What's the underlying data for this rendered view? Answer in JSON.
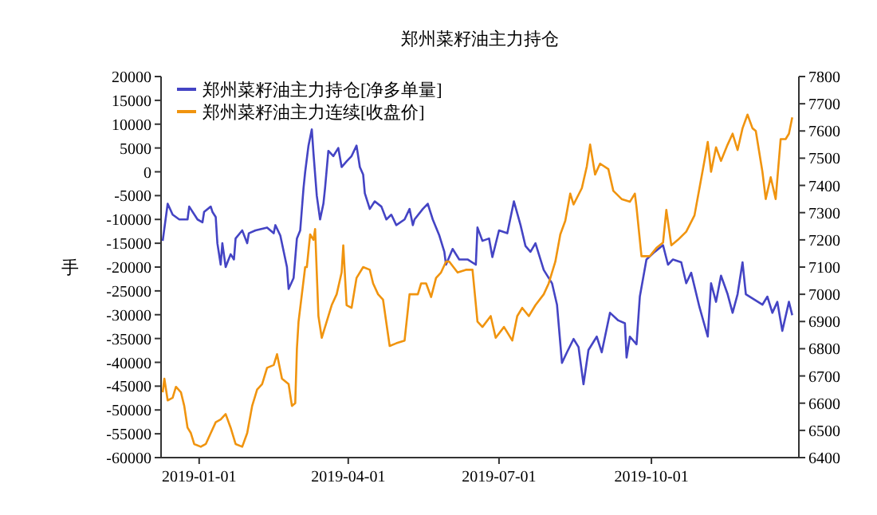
{
  "chart_data": {
    "type": "line",
    "title": "郑州菜籽油主力持仓",
    "ylabel": "手",
    "xlim": [
      "2018-12-09",
      "2019-12-29"
    ],
    "xticks": [
      "2019-01-01",
      "2019-04-01",
      "2019-07-01",
      "2019-10-01"
    ],
    "ylim": [
      -60000,
      20000
    ],
    "yticks": [
      -60000,
      -55000,
      -50000,
      -45000,
      -40000,
      -35000,
      -30000,
      -25000,
      -20000,
      -15000,
      -10000,
      -5000,
      0,
      5000,
      10000,
      15000,
      20000
    ],
    "y2lim": [
      6400,
      7800
    ],
    "y2ticks": [
      6400,
      6500,
      6600,
      6700,
      6800,
      6900,
      7000,
      7100,
      7200,
      7300,
      7400,
      7500,
      7600,
      7700,
      7800
    ],
    "legend": "top left",
    "grid": false,
    "series": [
      {
        "name": "郑州菜籽油主力持仓[净多单量]",
        "color": "#4444c4",
        "x": [
          "2018-12-10",
          "2018-12-13",
          "2018-12-16",
          "2018-12-20",
          "2018-12-25",
          "2018-12-26",
          "2018-12-31",
          "2019-01-03",
          "2019-01-04",
          "2019-01-08",
          "2019-01-09",
          "2019-01-11",
          "2019-01-12",
          "2019-01-14",
          "2019-01-15",
          "2019-01-17",
          "2019-01-20",
          "2019-01-22",
          "2019-01-23",
          "2019-01-27",
          "2019-01-30",
          "2019-01-31",
          "2019-02-04",
          "2019-02-11",
          "2019-02-15",
          "2019-02-16",
          "2019-02-19",
          "2019-02-23",
          "2019-02-24",
          "2019-02-27",
          "2019-03-01",
          "2019-03-03",
          "2019-03-05",
          "2019-03-06",
          "2019-03-08",
          "2019-03-10",
          "2019-03-11",
          "2019-03-13",
          "2019-03-15",
          "2019-03-17",
          "2019-03-18",
          "2019-03-20",
          "2019-03-23",
          "2019-03-26",
          "2019-03-28",
          "2019-03-31",
          "2019-04-03",
          "2019-04-06",
          "2019-04-08",
          "2019-04-10",
          "2019-04-11",
          "2019-04-14",
          "2019-04-17",
          "2019-04-21",
          "2019-04-24",
          "2019-04-27",
          "2019-04-30",
          "2019-05-05",
          "2019-05-08",
          "2019-05-10",
          "2019-05-11",
          "2019-05-16",
          "2019-05-19",
          "2019-05-22",
          "2019-05-26",
          "2019-05-29",
          "2019-05-30",
          "2019-06-03",
          "2019-06-07",
          "2019-06-12",
          "2019-06-17",
          "2019-06-18",
          "2019-06-21",
          "2019-06-25",
          "2019-06-27",
          "2019-07-01",
          "2019-07-06",
          "2019-07-10",
          "2019-07-14",
          "2019-07-17",
          "2019-07-20",
          "2019-07-23",
          "2019-07-28",
          "2019-08-02",
          "2019-08-05",
          "2019-08-08",
          "2019-08-11",
          "2019-08-15",
          "2019-08-18",
          "2019-08-21",
          "2019-08-24",
          "2019-08-29",
          "2019-09-01",
          "2019-09-06",
          "2019-09-11",
          "2019-09-15",
          "2019-09-16",
          "2019-09-18",
          "2019-09-22",
          "2019-09-24",
          "2019-09-28",
          "2019-10-03",
          "2019-10-08",
          "2019-10-11",
          "2019-10-14",
          "2019-10-19",
          "2019-10-22",
          "2019-10-25",
          "2019-10-30",
          "2019-11-04",
          "2019-11-06",
          "2019-11-09",
          "2019-11-12",
          "2019-11-16",
          "2019-11-19",
          "2019-11-22",
          "2019-11-25",
          "2019-11-27",
          "2019-12-02",
          "2019-12-07",
          "2019-12-10",
          "2019-12-13",
          "2019-12-16",
          "2019-12-19",
          "2019-12-23",
          "2019-12-25"
        ],
        "values": [
          -14500,
          -6700,
          -9000,
          -10000,
          -10000,
          -7300,
          -10000,
          -10600,
          -8400,
          -7300,
          -8400,
          -9500,
          -15000,
          -19500,
          -15000,
          -20000,
          -17300,
          -18400,
          -14000,
          -12300,
          -15000,
          -12900,
          -12300,
          -11700,
          -12900,
          -11200,
          -13400,
          -20000,
          -24600,
          -22300,
          -14000,
          -12300,
          -3400,
          0,
          5500,
          8900,
          3900,
          -5000,
          -10000,
          -6700,
          -3400,
          4400,
          3300,
          5000,
          1000,
          2200,
          3300,
          5500,
          1000,
          -600,
          -4500,
          -7800,
          -6200,
          -7300,
          -10000,
          -9000,
          -11200,
          -10000,
          -7800,
          -11200,
          -10000,
          -7800,
          -6700,
          -10000,
          -13400,
          -16800,
          -19500,
          -16200,
          -18400,
          -18400,
          -19500,
          -11700,
          -14500,
          -14000,
          -17900,
          -12300,
          -12900,
          -6200,
          -11200,
          -15600,
          -16800,
          -15000,
          -20600,
          -23400,
          -27900,
          -40100,
          -37900,
          -35100,
          -36800,
          -44600,
          -37400,
          -34600,
          -37900,
          -29600,
          -31200,
          -31800,
          -39000,
          -34600,
          -36200,
          -26200,
          -18400,
          -16800,
          -15400,
          -19500,
          -18400,
          -19000,
          -23400,
          -21200,
          -28400,
          -34600,
          -23400,
          -27300,
          -21800,
          -25700,
          -29600,
          -25700,
          -19000,
          -25700,
          -26800,
          -27900,
          -26200,
          -29600,
          -27300,
          -33400,
          -27300,
          -30100
        ]
      },
      {
        "name": "郑州菜籽油主力连续[收盘价]",
        "color": "#f0940f",
        "axis": "y2",
        "x": [
          "2018-12-10",
          "2018-12-11",
          "2018-12-13",
          "2018-12-16",
          "2018-12-18",
          "2018-12-21",
          "2018-12-23",
          "2018-12-25",
          "2018-12-27",
          "2018-12-29",
          "2019-01-02",
          "2019-01-05",
          "2019-01-08",
          "2019-01-11",
          "2019-01-14",
          "2019-01-17",
          "2019-01-20",
          "2019-01-23",
          "2019-01-27",
          "2019-01-30",
          "2019-02-02",
          "2019-02-05",
          "2019-02-08",
          "2019-02-11",
          "2019-02-15",
          "2019-02-17",
          "2019-02-20",
          "2019-02-24",
          "2019-02-26",
          "2019-02-28",
          "2019-03-01",
          "2019-03-02",
          "2019-03-04",
          "2019-03-06",
          "2019-03-07",
          "2019-03-09",
          "2019-03-11",
          "2019-03-12",
          "2019-03-13",
          "2019-03-14",
          "2019-03-16",
          "2019-03-18",
          "2019-03-22",
          "2019-03-25",
          "2019-03-28",
          "2019-03-29",
          "2019-03-31",
          "2019-04-03",
          "2019-04-06",
          "2019-04-10",
          "2019-04-14",
          "2019-04-16",
          "2019-04-19",
          "2019-04-22",
          "2019-04-26",
          "2019-04-30",
          "2019-05-05",
          "2019-05-08",
          "2019-05-13",
          "2019-05-15",
          "2019-05-18",
          "2019-05-21",
          "2019-05-24",
          "2019-05-27",
          "2019-05-30",
          "2019-06-01",
          "2019-06-06",
          "2019-06-11",
          "2019-06-15",
          "2019-06-18",
          "2019-06-21",
          "2019-06-26",
          "2019-06-29",
          "2019-07-04",
          "2019-07-09",
          "2019-07-12",
          "2019-07-15",
          "2019-07-19",
          "2019-07-23",
          "2019-07-28",
          "2019-07-31",
          "2019-08-04",
          "2019-08-07",
          "2019-08-10",
          "2019-08-13",
          "2019-08-15",
          "2019-08-20",
          "2019-08-23",
          "2019-08-25",
          "2019-08-28",
          "2019-08-31",
          "2019-09-05",
          "2019-09-08",
          "2019-09-13",
          "2019-09-18",
          "2019-09-21",
          "2019-09-22",
          "2019-09-25",
          "2019-09-30",
          "2019-10-04",
          "2019-10-08",
          "2019-10-10",
          "2019-10-13",
          "2019-10-17",
          "2019-10-22",
          "2019-10-27",
          "2019-10-30",
          "2019-11-02",
          "2019-11-04",
          "2019-11-06",
          "2019-11-09",
          "2019-11-12",
          "2019-11-16",
          "2019-11-19",
          "2019-11-22",
          "2019-11-25",
          "2019-11-28",
          "2019-12-01",
          "2019-12-03",
          "2019-12-07",
          "2019-12-09",
          "2019-12-12",
          "2019-12-15",
          "2019-12-18",
          "2019-12-21",
          "2019-12-23",
          "2019-12-25"
        ],
        "values": [
          6640,
          6690,
          6610,
          6620,
          6660,
          6640,
          6590,
          6510,
          6490,
          6450,
          6440,
          6450,
          6490,
          6530,
          6540,
          6560,
          6510,
          6450,
          6440,
          6490,
          6590,
          6650,
          6670,
          6730,
          6740,
          6780,
          6690,
          6670,
          6590,
          6600,
          6800,
          6900,
          7000,
          7100,
          7100,
          7220,
          7200,
          7240,
          7080,
          6920,
          6840,
          6880,
          6960,
          7000,
          7080,
          7180,
          6960,
          6950,
          7060,
          7100,
          7090,
          7040,
          7000,
          6980,
          6810,
          6820,
          6830,
          7000,
          7000,
          7040,
          7040,
          6990,
          7060,
          7080,
          7120,
          7120,
          7080,
          7090,
          7090,
          6900,
          6880,
          6920,
          6840,
          6880,
          6830,
          6920,
          6950,
          6920,
          6960,
          7000,
          7040,
          7120,
          7220,
          7270,
          7370,
          7330,
          7390,
          7470,
          7550,
          7440,
          7480,
          7460,
          7380,
          7350,
          7340,
          7370,
          7320,
          7140,
          7140,
          7170,
          7190,
          7310,
          7180,
          7200,
          7230,
          7290,
          7390,
          7490,
          7560,
          7450,
          7540,
          7490,
          7550,
          7590,
          7530,
          7610,
          7660,
          7610,
          7600,
          7450,
          7350,
          7430,
          7350,
          7570,
          7570,
          7590,
          7650
        ]
      }
    ]
  }
}
